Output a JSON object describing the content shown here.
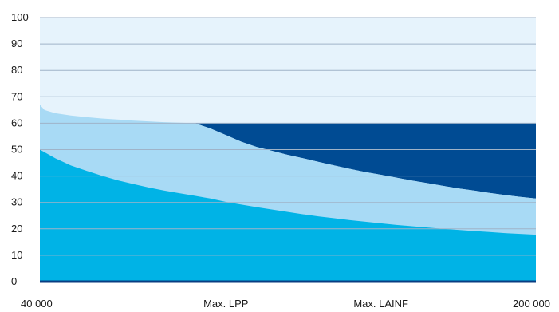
{
  "chart_data": {
    "type": "area",
    "title": "",
    "xlabel": "",
    "ylabel": "",
    "xlim": [
      40000,
      200000
    ],
    "ylim": [
      0,
      100
    ],
    "yticks": [
      0,
      10,
      20,
      30,
      40,
      50,
      60,
      70,
      80,
      90,
      100
    ],
    "xtick_labels": [
      {
        "x": 40000,
        "label": "40 000"
      },
      {
        "x": 100000,
        "label": "Max. LPP"
      },
      {
        "x": 150000,
        "label": "Max. LAINF"
      },
      {
        "x": 200000,
        "label": "200 000"
      }
    ],
    "grid": true,
    "legend": "none",
    "background_band": {
      "from": 0,
      "to": 100,
      "color": "#e6f3fc"
    },
    "series": [
      {
        "x": [
          40000,
          41500,
          45000,
          50000,
          55000,
          60000,
          65000,
          70000,
          75000,
          80000,
          85000,
          90000,
          95000,
          100000,
          105000,
          110000,
          115000,
          120000,
          125000,
          130000,
          135000,
          140000,
          145000,
          150000,
          155000,
          160000,
          165000,
          170000,
          175000,
          180000,
          185000,
          190000,
          195000,
          200000
        ],
        "values": [
          67,
          65,
          63.8,
          62.9,
          62.3,
          61.8,
          61.4,
          61,
          60.7,
          60.4,
          60.2,
          60,
          58,
          55.5,
          53,
          51,
          49.5,
          48,
          46.7,
          45.3,
          44,
          42.7,
          41.5,
          40.5,
          39.4,
          38.3,
          37.3,
          36.3,
          35.3,
          34.5,
          33.6,
          32.8,
          32.1,
          31.5
        ],
        "colors": {
          "above_60": "#004b93",
          "below_60": "#a8daf5"
        }
      },
      {
        "x": [
          40000,
          41500,
          45000,
          50000,
          55000,
          60000,
          65000,
          70000,
          75000,
          80000,
          85000,
          90000,
          95000,
          100000,
          105000,
          110000,
          115000,
          120000,
          125000,
          130000,
          135000,
          140000,
          145000,
          150000,
          155000,
          160000,
          165000,
          170000,
          175000,
          180000,
          185000,
          190000,
          195000,
          200000
        ],
        "values": [
          50,
          49,
          46.7,
          44,
          42,
          40.1,
          38.4,
          37,
          35.7,
          34.5,
          33.5,
          32.5,
          31.5,
          30.2,
          29.2,
          28.2,
          27.3,
          26.4,
          25.5,
          24.7,
          24,
          23.3,
          22.7,
          22.1,
          21.5,
          21,
          20.5,
          20,
          19.6,
          19.2,
          18.8,
          18.4,
          18.1,
          17.8
        ],
        "color": "#00b3e6"
      }
    ],
    "axis_color": "#0a3d82",
    "grid_color": "#9fb3c8"
  }
}
